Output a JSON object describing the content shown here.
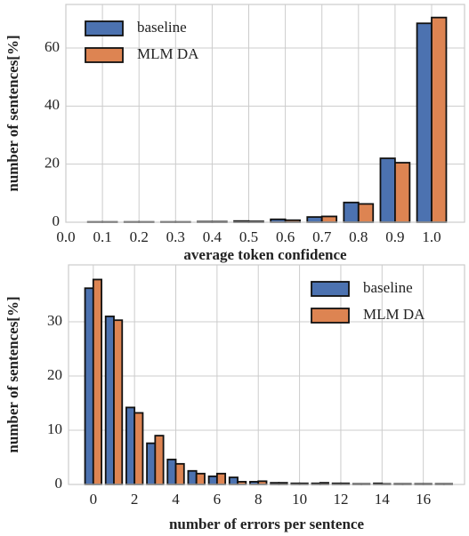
{
  "chart_data": [
    {
      "type": "bar",
      "x_label": "average token confidence",
      "y_label": "number of sentences[%]",
      "x": [
        0.1,
        0.2,
        0.3,
        0.4,
        0.5,
        0.6,
        0.7,
        0.8,
        0.9,
        1.0
      ],
      "series": [
        {
          "name": "baseline",
          "color": "#4c72b0",
          "values": [
            0.1,
            0.1,
            0.1,
            0.2,
            0.4,
            1.0,
            1.8,
            6.8,
            22,
            68.5
          ]
        },
        {
          "name": "MLM DA",
          "color": "#dd8452",
          "values": [
            0.1,
            0.1,
            0.1,
            0.2,
            0.3,
            0.7,
            2.0,
            6.3,
            20.5,
            70.5
          ]
        }
      ],
      "xlim": [
        0,
        1.09
      ],
      "ylim": [
        0,
        75
      ],
      "xticks": [
        {
          "value": 0,
          "label": "0.0"
        },
        0.1,
        0.2,
        0.3,
        0.4,
        0.5,
        0.6,
        0.7,
        0.8,
        0.9,
        {
          "value": 1,
          "label": "1.0"
        }
      ],
      "yticks": [
        0,
        20,
        40,
        60
      ],
      "grid": true,
      "legend": "upper left"
    },
    {
      "type": "bar",
      "x_label": "number of errors per sentence",
      "y_label": "number of sentences[%]",
      "x": [
        0,
        1,
        2,
        3,
        4,
        5,
        6,
        7,
        8,
        9,
        10,
        11,
        12,
        13,
        14,
        15,
        16,
        17
      ],
      "series": [
        {
          "name": "baseline",
          "color": "#4c72b0",
          "values": [
            36.2,
            31,
            14.2,
            7.6,
            4.6,
            2.5,
            1.5,
            1.3,
            0.5,
            0.3,
            0.2,
            0.2,
            0.2,
            0.1,
            0.2,
            0.1,
            0.1,
            0.1
          ]
        },
        {
          "name": "MLM DA",
          "color": "#dd8452",
          "values": [
            37.8,
            30.3,
            13.2,
            9,
            3.8,
            2.0,
            2.0,
            0.5,
            0.6,
            0.3,
            0.2,
            0.3,
            0.2,
            0.1,
            0.1,
            0.1,
            0.1,
            0.1
          ]
        }
      ],
      "xlim": [
        -1.2,
        18
      ],
      "ylim": [
        0,
        40.5
      ],
      "xticks": [
        0,
        2,
        4,
        6,
        8,
        10,
        12,
        14,
        16
      ],
      "yticks": [
        0,
        10,
        20,
        30
      ],
      "grid": true,
      "legend": "upper right"
    }
  ]
}
